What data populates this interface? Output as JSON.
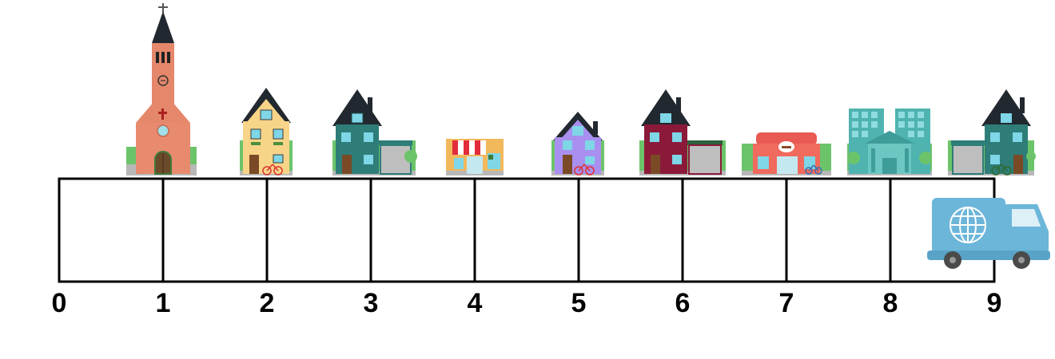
{
  "number_line": {
    "labels": [
      "0",
      "1",
      "2",
      "3",
      "4",
      "5",
      "6",
      "7",
      "8",
      "9"
    ]
  },
  "buildings": [
    {
      "position": 1,
      "kind": "church",
      "icon": "church-icon"
    },
    {
      "position": 2,
      "kind": "yellow-house-with-bicycle",
      "icon": "house-icon",
      "color": "#F7D488"
    },
    {
      "position": 3,
      "kind": "teal-house-with-garage",
      "icon": "house-icon",
      "color": "#2E7D78"
    },
    {
      "position": 4,
      "kind": "shop-with-striped-awning",
      "icon": "shop-icon",
      "color": "#F2B85C"
    },
    {
      "position": 5,
      "kind": "purple-house-with-bicycle",
      "icon": "house-icon",
      "color": "#A98FF0"
    },
    {
      "position": 6,
      "kind": "maroon-house-with-garage",
      "icon": "house-icon",
      "color": "#8B1A3A"
    },
    {
      "position": 7,
      "kind": "gym-with-bicycle",
      "icon": "gym-icon",
      "color": "#F06A5E"
    },
    {
      "position": 8,
      "kind": "office-towers-and-bank",
      "icon": "bank-icon",
      "color": "#4FB3B0"
    },
    {
      "position": 9,
      "kind": "teal-house-with-garage-and-bicycle",
      "icon": "house-icon",
      "color": "#2E7D78"
    }
  ],
  "truck": {
    "position": 9,
    "icon": "globe-icon",
    "color": "#6CB6DA"
  }
}
